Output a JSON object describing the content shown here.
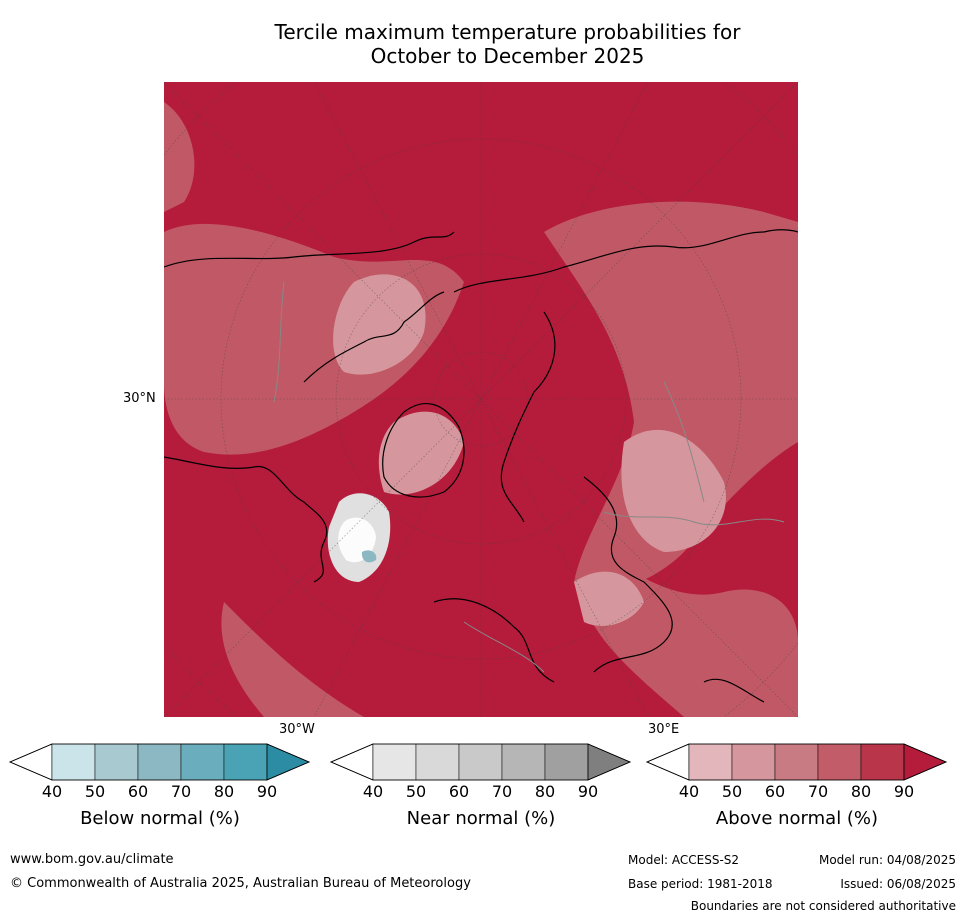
{
  "title_line1": "Tercile maximum temperature probabilities for",
  "title_line2": "October to December 2025",
  "axis_labels": {
    "lat_30n": "30°N",
    "lon_30w": "30°W",
    "lon_30e": "30°E"
  },
  "colorbars": [
    {
      "label": "Below normal (%)",
      "ticks": [
        "40",
        "50",
        "60",
        "70",
        "80",
        "90"
      ],
      "colors": [
        "#cbe4ea",
        "#a8c9cf",
        "#8cb8c4",
        "#6aadbd",
        "#4aa3b5",
        "#2b8ca3"
      ]
    },
    {
      "label": "Near normal (%)",
      "ticks": [
        "40",
        "50",
        "60",
        "70",
        "80",
        "90"
      ],
      "colors": [
        "#e6e6e6",
        "#d9d9d9",
        "#c9c9c9",
        "#b6b6b6",
        "#a0a0a0",
        "#7f7f7f"
      ]
    },
    {
      "label": "Above normal (%)",
      "ticks": [
        "40",
        "50",
        "60",
        "70",
        "80",
        "90"
      ],
      "colors": [
        "#e2b6bb",
        "#d5979d",
        "#c97b83",
        "#c25c68",
        "#b9354a",
        "#b51b3b"
      ]
    }
  ],
  "footer": {
    "website": "www.bom.gov.au/climate",
    "copyright": "© Commonwealth of Australia 2025, Australian Bureau of Meteorology",
    "model": "Model: ACCESS-S2",
    "model_run": "Model run: 04/08/2025",
    "base_period": "Base period: 1981-2018",
    "issued": "Issued: 06/08/2025",
    "disclaimer": "Boundaries are not considered authoritative"
  }
}
